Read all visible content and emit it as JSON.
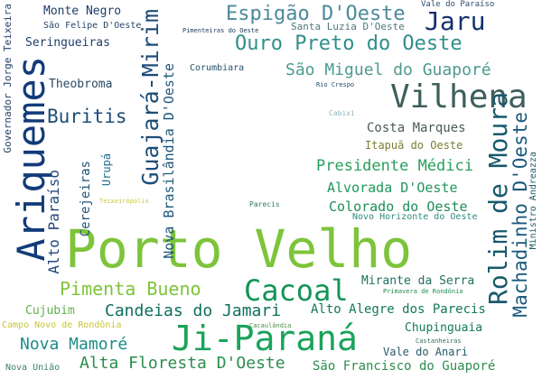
{
  "words": [
    "Porto Velho",
    "Ji-Paraná",
    "Ariquemes",
    "Vilhena",
    "Cacoal",
    "Rolim de Moura",
    "Jaru",
    "Guajará-Mirim",
    "Ouro Preto do Oeste",
    "Espigão D'Oeste",
    "Machadinho D'Oeste",
    "Pimenta Bueno",
    "Buritis",
    "Candeias do Jamari",
    "Nova Mamoré",
    "Alta Floresta D'Oeste",
    "São Miguel do Guaporé",
    "Presidente Médici",
    "Nova Brasilândia D'Oeste",
    "Alto Paraíso",
    "Alvorada D'Oeste",
    "Colorado do Oeste",
    "Costa Marques",
    "Seringueiras",
    "Theobroma",
    "Monte Negro",
    "Cerejeiras",
    "São Francisco do Guaporé",
    "Alto Alegre dos Parecis",
    "Mirante da Serra",
    "Governador Jorge Teixeira",
    "Cujubim",
    "Urupá",
    "Chupinguaia",
    "Itapuã do Oeste",
    "Vale do Anari",
    "Nova União",
    "Santa Luzia D'Oeste",
    "São Felipe D'Oeste",
    "Corumbiara",
    "Campo Novo de Rondônia",
    "Novo Horizonte do Oeste",
    "Ministro Andreazza",
    "Vale do Paraíso",
    "Teixeirópolis",
    "Cacaulândia",
    "Castanheiras",
    "Pimenteiras do Oeste",
    "Primavera de Rondônia",
    "Parecis",
    "Rio Crespo",
    "Cabixi"
  ]
}
